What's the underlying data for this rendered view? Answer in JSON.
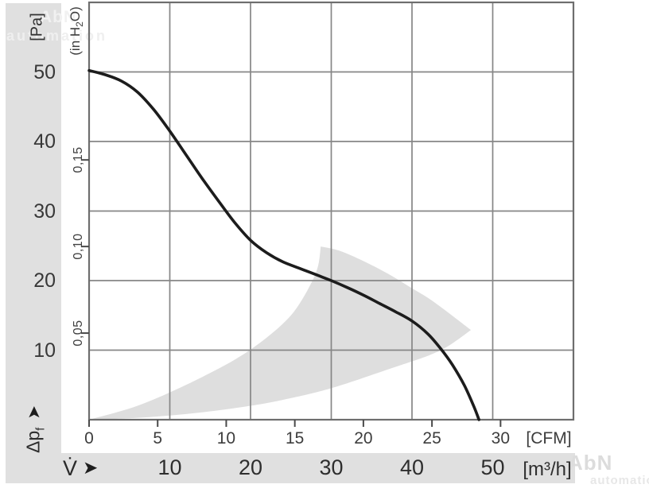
{
  "watermark": {
    "brand": "AbN",
    "sub": "automation"
  },
  "arrows": {
    "glyph": "➤"
  },
  "chart_data": {
    "type": "line",
    "x_axis": {
      "range_m3h": [
        0,
        60
      ],
      "gridlines_m3h": [
        10,
        20,
        30,
        40,
        50
      ],
      "ticks_cfm": [
        0,
        5,
        10,
        15,
        20,
        25,
        30
      ],
      "m3h_per_cfm": 1.699,
      "unit_cfm": "[CFM]",
      "unit_m3h": "[m³/h]",
      "flow_symbol": "V̇"
    },
    "y_axis": {
      "range_pa": [
        0,
        60
      ],
      "gridlines_pa": [
        50,
        40,
        30,
        20,
        10
      ],
      "ticks_inh2o": [
        {
          "value": 0.15,
          "label": "0,15"
        },
        {
          "value": 0.1,
          "label": "0,10"
        },
        {
          "value": 0.05,
          "label": "0,05"
        }
      ],
      "pa_per_inh2o": 249,
      "unit_pa": "[Pa]",
      "unit_inh2o_pre": "(in H",
      "unit_inh2o_sub": "2",
      "unit_inh2o_post": "O)",
      "symbol_main": "Δp",
      "symbol_sub": "f"
    },
    "fan_curve_m3h_pa": [
      [
        0,
        50.2
      ],
      [
        2,
        49.6
      ],
      [
        4,
        48.7
      ],
      [
        6,
        47.1
      ],
      [
        8,
        44.6
      ],
      [
        10,
        41.5
      ],
      [
        12,
        38.1
      ],
      [
        14,
        34.7
      ],
      [
        16,
        31.5
      ],
      [
        18,
        28.4
      ],
      [
        20,
        25.8
      ],
      [
        22,
        24.0
      ],
      [
        24,
        22.7
      ],
      [
        26,
        21.8
      ],
      [
        28,
        20.9
      ],
      [
        30,
        20.0
      ],
      [
        32,
        19.0
      ],
      [
        34,
        17.9
      ],
      [
        36,
        16.7
      ],
      [
        38,
        15.5
      ],
      [
        40,
        14.2
      ],
      [
        42,
        12.3
      ],
      [
        43.5,
        10.3
      ],
      [
        45,
        7.9
      ],
      [
        46.5,
        4.9
      ],
      [
        47.7,
        1.8
      ],
      [
        48.3,
        0
      ]
    ],
    "operating_range_m3h_pa": {
      "left": [
        [
          0,
          0
        ],
        [
          6,
          2.0
        ],
        [
          12,
          5.0
        ],
        [
          18,
          8.6
        ],
        [
          22,
          11.8
        ],
        [
          25,
          15.0
        ],
        [
          27,
          18.5
        ],
        [
          28.3,
          21.8
        ],
        [
          28.7,
          24.9
        ]
      ],
      "upper": [
        [
          28.7,
          24.9
        ],
        [
          31,
          24.3
        ],
        [
          34,
          22.8
        ],
        [
          37,
          21.0
        ],
        [
          40,
          18.9
        ],
        [
          42,
          17.5
        ],
        [
          43.8,
          16.0
        ],
        [
          45.5,
          14.5
        ],
        [
          47.3,
          12.9
        ]
      ],
      "lower": [
        [
          0,
          0
        ],
        [
          5,
          0.2
        ],
        [
          10,
          0.6
        ],
        [
          15,
          1.2
        ],
        [
          20,
          2.0
        ],
        [
          23.4,
          2.7
        ],
        [
          28,
          3.9
        ],
        [
          31.6,
          5.1
        ],
        [
          37.2,
          7.3
        ],
        [
          42,
          9.2
        ],
        [
          44.5,
          10.6
        ],
        [
          47.3,
          12.9
        ]
      ]
    },
    "colors": {
      "curve": "#1c1c1c",
      "region": "#dedede",
      "grid": "#868686",
      "border": "#6e6e6e",
      "tick": "#4a4a4a",
      "band": "#e0e0e0"
    }
  }
}
